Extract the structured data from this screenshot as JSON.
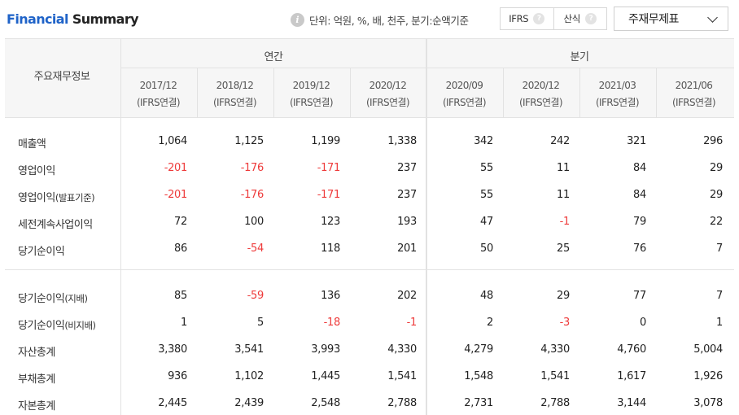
{
  "header": {
    "title_part1": "Financial",
    "title_part2": "Summary",
    "unit_icon": "info-icon",
    "unit_text": "단위: 억원, %, 배, 천주, 분기:순액기준",
    "toggle": {
      "ifrs_label": "IFRS",
      "calc_label": "산식",
      "help_icon": "?"
    },
    "select": {
      "selected": "주재무제표",
      "icon": "chevron-down-icon"
    }
  },
  "table": {
    "label_header": "주요재무정보",
    "groups": [
      "연간",
      "분기"
    ],
    "periods": [
      {
        "date": "2017/12",
        "basis": "(IFRS연결)"
      },
      {
        "date": "2018/12",
        "basis": "(IFRS연결)"
      },
      {
        "date": "2019/12",
        "basis": "(IFRS연결)"
      },
      {
        "date": "2020/12",
        "basis": "(IFRS연결)"
      },
      {
        "date": "2020/09",
        "basis": "(IFRS연결)"
      },
      {
        "date": "2020/12",
        "basis": "(IFRS연결)"
      },
      {
        "date": "2021/03",
        "basis": "(IFRS연결)"
      },
      {
        "date": "2021/06",
        "basis": "(IFRS연결)"
      }
    ],
    "rows": [
      {
        "label": "매출액",
        "sub": "",
        "values": [
          "1,064",
          "1,125",
          "1,199",
          "1,338",
          "342",
          "242",
          "321",
          "296"
        ]
      },
      {
        "label": "영업이익",
        "sub": "",
        "values": [
          "-201",
          "-176",
          "-171",
          "237",
          "55",
          "11",
          "84",
          "29"
        ]
      },
      {
        "label": "영업이익",
        "sub": "(발표기준)",
        "values": [
          "-201",
          "-176",
          "-171",
          "237",
          "55",
          "11",
          "84",
          "29"
        ]
      },
      {
        "label": "세전계속사업이익",
        "sub": "",
        "values": [
          "72",
          "100",
          "123",
          "193",
          "47",
          "-1",
          "79",
          "22"
        ]
      },
      {
        "label": "당기순이익",
        "sub": "",
        "values": [
          "86",
          "-54",
          "118",
          "201",
          "50",
          "25",
          "76",
          "7"
        ]
      },
      {
        "label": "당기순이익",
        "sub": "(지배)",
        "values": [
          "85",
          "-59",
          "136",
          "202",
          "48",
          "29",
          "77",
          "7"
        ]
      },
      {
        "label": "당기순이익",
        "sub": "(비지배)",
        "values": [
          "1",
          "5",
          "-18",
          "-1",
          "2",
          "-3",
          "0",
          "1"
        ]
      },
      {
        "label": "자산총계",
        "sub": "",
        "values": [
          "3,380",
          "3,541",
          "3,993",
          "4,330",
          "4,279",
          "4,330",
          "4,760",
          "5,004"
        ]
      },
      {
        "label": "부채총계",
        "sub": "",
        "values": [
          "936",
          "1,102",
          "1,445",
          "1,541",
          "1,548",
          "1,541",
          "1,617",
          "1,926"
        ]
      },
      {
        "label": "자본총계",
        "sub": "",
        "values": [
          "2,445",
          "2,439",
          "2,548",
          "2,788",
          "2,731",
          "2,788",
          "3,144",
          "3,078"
        ]
      }
    ]
  },
  "colors": {
    "title_accent": "#1f63c8",
    "negative": "#ee3a3a",
    "header_bg": "#f6f6f6",
    "border": "#e2e2e2"
  }
}
